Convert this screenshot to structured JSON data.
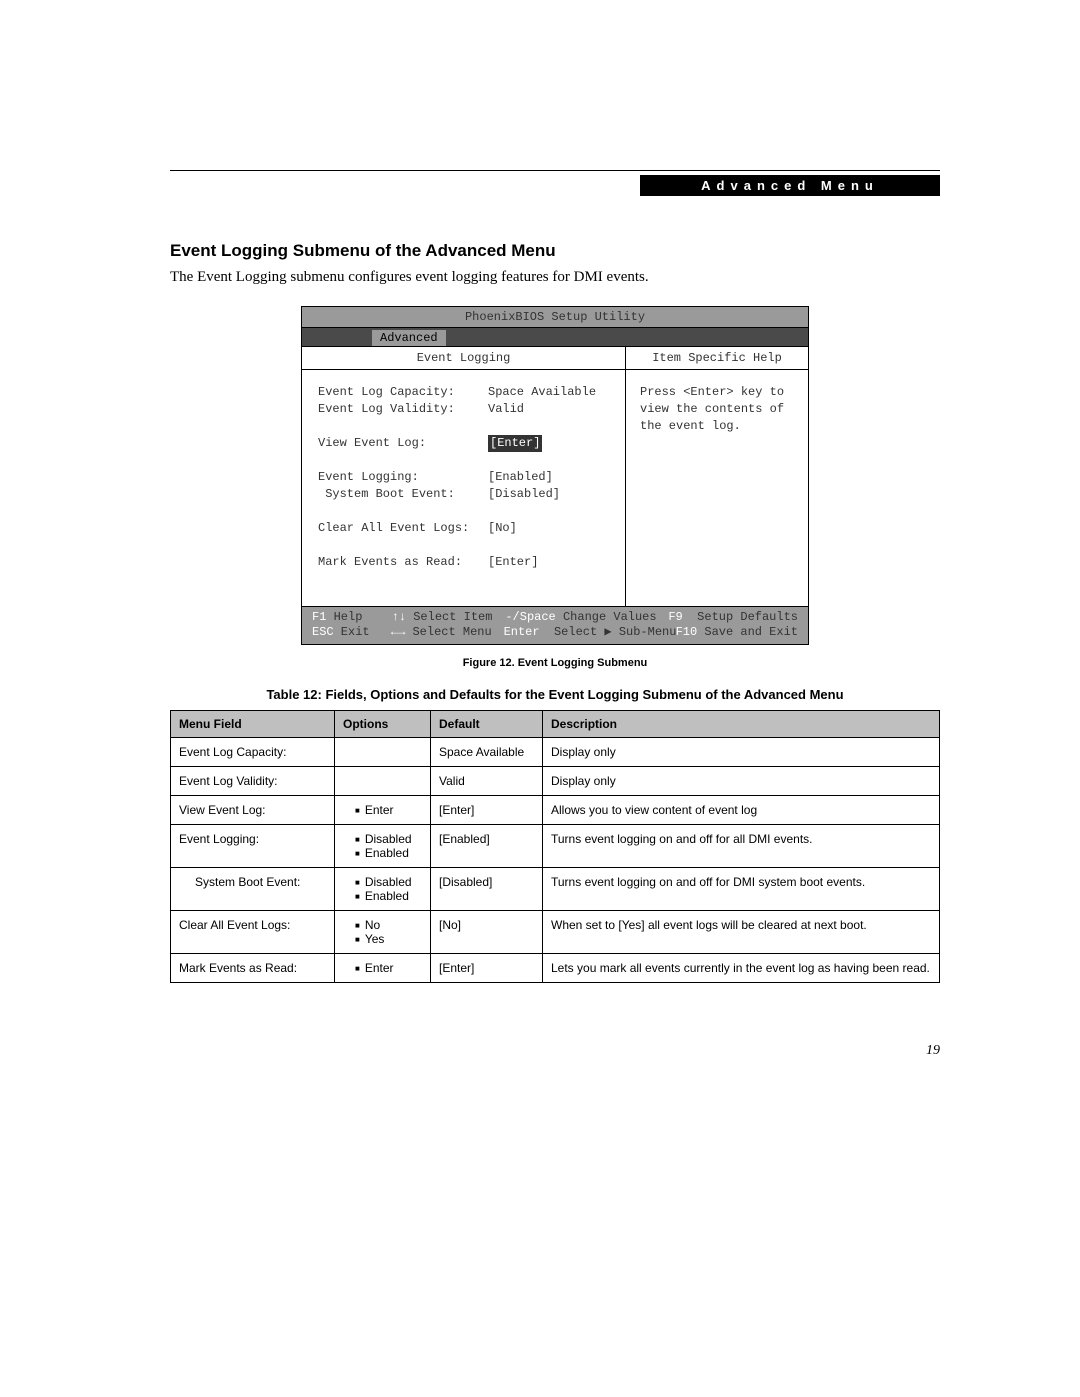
{
  "page": {
    "header_strip": "Advanced Menu",
    "section_title": "Event Logging Submenu of the Advanced Menu",
    "intro": "The Event Logging submenu configures event logging features for DMI events.",
    "figure_caption": "Figure 12.  Event Logging Submenu",
    "table_title": "Table 12: Fields, Options and Defaults for the Event Logging Submenu of the Advanced Menu",
    "page_number": "19"
  },
  "bios": {
    "title": "PhoenixBIOS Setup Utility",
    "tab": "Advanced",
    "left_header": "Event Logging",
    "right_header": "Item Specific Help",
    "help_text_1": "Press <Enter> key to",
    "help_text_2": "view the contents of",
    "help_text_3": "the event log.",
    "rows": {
      "r0": {
        "k": "Event Log Capacity:",
        "v": "Space Available"
      },
      "r1": {
        "k": "Event Log Validity:",
        "v": "Valid"
      },
      "r2": {
        "k": "View Event Log:",
        "v": "[Enter]",
        "selected": true
      },
      "r3": {
        "k": "Event Logging:",
        "v": "[Enabled]"
      },
      "r4": {
        "k": " System Boot Event:",
        "v": "[Disabled]"
      },
      "r5": {
        "k": "Clear All Event Logs:",
        "v": "[No]"
      },
      "r6": {
        "k": "Mark Events as Read:",
        "v": "[Enter]"
      }
    },
    "footer": {
      "f1k": "F1",
      "f1": " Help",
      "f2k": "↑↓",
      "f2": " Select Item",
      "f3k": "-/Space",
      "f3": " Change Values",
      "f4k": "F9",
      "f4": "  Setup Defaults",
      "g1k": "ESC",
      "g1": " Exit",
      "g2k": "←→",
      "g2": " Select Menu",
      "g3k": "Enter",
      "g3": "  Select ▶ Sub-Menu",
      "g4k": "F10",
      "g4": " Save and Exit"
    }
  },
  "table": {
    "headers": {
      "c0": "Menu Field",
      "c1": "Options",
      "c2": "Default",
      "c3": "Description"
    },
    "col_widths": {
      "c0": "164px",
      "c1": "96px",
      "c2": "112px",
      "c3": "auto"
    },
    "rows": [
      {
        "field": "Event Log Capacity:",
        "options": [],
        "default": "Space Available",
        "desc": "Display only"
      },
      {
        "field": "Event Log Validity:",
        "options": [],
        "default": "Valid",
        "desc": "Display only"
      },
      {
        "field": "View Event Log:",
        "options": [
          "Enter"
        ],
        "default": "[Enter]",
        "desc": "Allows you to view content of event log"
      },
      {
        "field": "Event Logging:",
        "options": [
          "Disabled",
          "Enabled"
        ],
        "default": "[Enabled]",
        "desc": "Turns event logging on and off for all DMI events."
      },
      {
        "field": "System Boot Event:",
        "indent": true,
        "options": [
          "Disabled",
          "Enabled"
        ],
        "default": "[Disabled]",
        "desc": "Turns event logging on and off for DMI system boot events."
      },
      {
        "field": "Clear All Event Logs:",
        "options": [
          "No",
          "Yes"
        ],
        "default": "[No]",
        "desc": "When set to [Yes] all event logs will be cleared at next boot."
      },
      {
        "field": "Mark Events as Read:",
        "options": [
          "Enter"
        ],
        "default": "[Enter]",
        "desc": "Lets you mark all events currently in the event log as having been read."
      }
    ]
  },
  "style": {
    "header_strip_bg": "#000000",
    "header_strip_fg": "#ffffff",
    "bios_gray": "#9a9a9a",
    "bios_tabbar": "#4a4a4a",
    "bios_sel_bg": "#333333",
    "bios_sel_fg": "#ffffff",
    "table_header_bg": "#bfbfbf",
    "border_color": "#000000"
  }
}
